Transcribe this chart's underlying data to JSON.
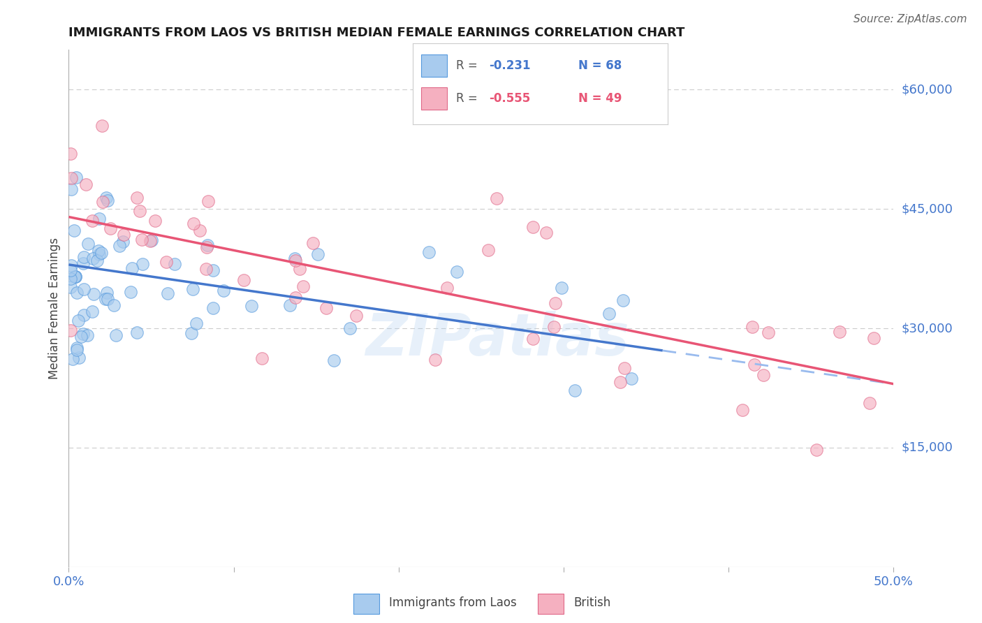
{
  "title": "IMMIGRANTS FROM LAOS VS BRITISH MEDIAN FEMALE EARNINGS CORRELATION CHART",
  "source": "Source: ZipAtlas.com",
  "ylabel": "Median Female Earnings",
  "ytick_labels": [
    "$15,000",
    "$30,000",
    "$45,000",
    "$60,000"
  ],
  "ytick_values": [
    15000,
    30000,
    45000,
    60000
  ],
  "grid_ytick_values": [
    15000,
    30000,
    45000,
    60000
  ],
  "legend_label_blue": "Immigrants from Laos",
  "legend_label_pink": "British",
  "color_blue_fill": "#A8CBEE",
  "color_blue_edge": "#5599DD",
  "color_pink_fill": "#F5B0C0",
  "color_pink_edge": "#E06888",
  "color_blue_line": "#4477CC",
  "color_pink_line": "#E85575",
  "color_dashed": "#99BBEE",
  "xlim": [
    0.0,
    0.5
  ],
  "ylim": [
    0,
    65000
  ],
  "watermark": "ZIPatlas",
  "background_color": "#FFFFFF",
  "grid_color": "#CCCCCC",
  "r_blue": -0.231,
  "n_blue": 68,
  "r_pink": -0.555,
  "n_pink": 49,
  "blue_intercept": 38000,
  "blue_slope": -30000,
  "blue_line_end_solid": 0.36,
  "blue_line_end_dashed": 0.5,
  "pink_intercept": 44000,
  "pink_slope": -42000,
  "pink_line_start": 0.0,
  "pink_line_end": 0.5
}
